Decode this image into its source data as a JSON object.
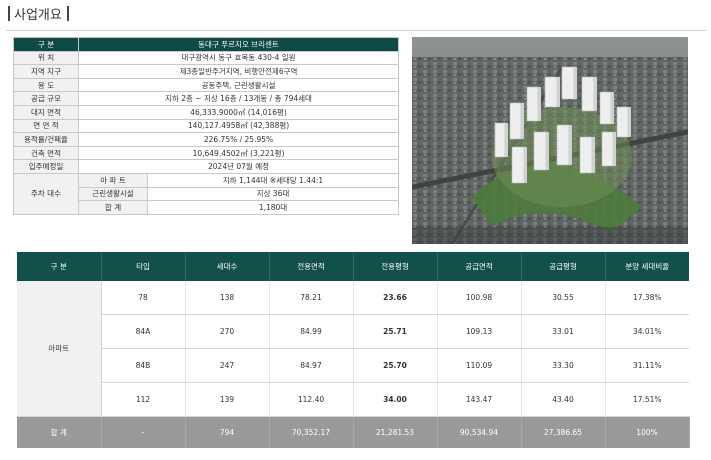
{
  "page_title": "사업개요",
  "overview": {
    "header": {
      "label": "구    분",
      "value": "동대구 푸르지오 브리센트"
    },
    "rows": [
      {
        "label": "위    치",
        "value": "대구광역시 동구 효목동 430-4 일원"
      },
      {
        "label": "지역 지구",
        "value": "제3종일반주거지역, 비행안전제6구역"
      },
      {
        "label": "용    도",
        "value": "공동주택, 근린생활시설"
      },
      {
        "label": "공급 규모",
        "value": "지하 2층 ~ 지상 16층 / 13개동 / 총 794세대"
      },
      {
        "label": "대지 면적",
        "value": "46,333.9000㎡ (14,016평)"
      },
      {
        "label": "연 면 적",
        "value": "140,127.4958㎡ (42,388평)"
      },
      {
        "label": "용적률/건폐율",
        "value": "226.75% / 25.95%"
      },
      {
        "label": "건축 면적",
        "value": "10,649.4502㎡ (3,221평)"
      },
      {
        "label": "입주예정일",
        "value": "2024년 07월 예정"
      }
    ],
    "parking": {
      "label": "주차 대수",
      "rows": [
        {
          "label": "아 파 트",
          "value": "지하 1,144대 ※세대당 1.44:1"
        },
        {
          "label": "근린생활시설",
          "value": "지상 36대"
        },
        {
          "label": "합    계",
          "value": "1,180대"
        }
      ]
    }
  },
  "units_table": {
    "headers": [
      "구    분",
      "타입",
      "세대수",
      "전용면적",
      "전용평형",
      "공급면적",
      "공급평형",
      "분양 세대비율"
    ],
    "group_label": "아파트",
    "rows": [
      [
        "78",
        "138",
        "78.21",
        "23.66",
        "100.98",
        "30.55",
        "17.38%"
      ],
      [
        "84A",
        "270",
        "84.99",
        "25.71",
        "109.13",
        "33.01",
        "34.01%"
      ],
      [
        "84B",
        "247",
        "84.97",
        "25.70",
        "110.09",
        "33.30",
        "31.11%"
      ],
      [
        "112",
        "139",
        "112.40",
        "34.00",
        "143.47",
        "43.40",
        "17.51%"
      ]
    ],
    "total": [
      "합    계",
      "-",
      "794",
      "70,352.17",
      "21,281.53",
      "90,534.94",
      "27,386.65",
      "100%"
    ]
  },
  "photo": {
    "icon": "aerial-rendering-image"
  }
}
